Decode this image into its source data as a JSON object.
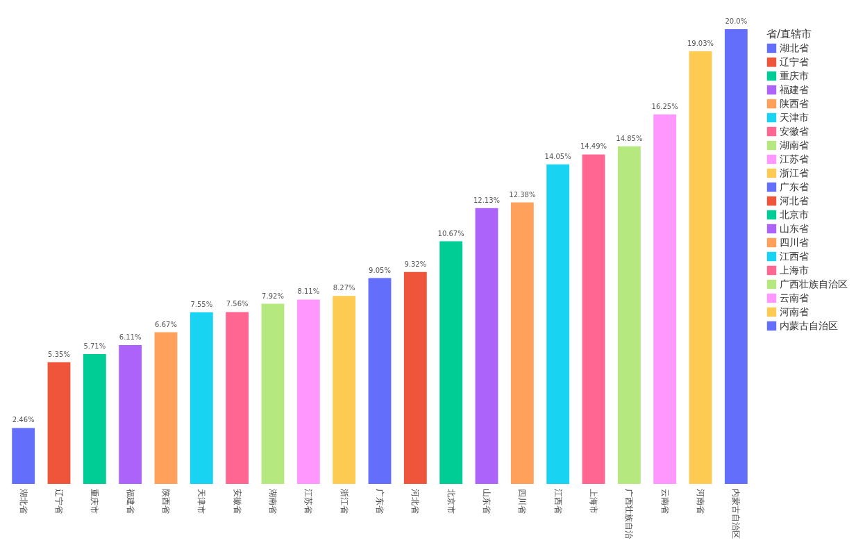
{
  "chart_data": {
    "type": "bar",
    "legend_title": "省/直辖市",
    "legend": "top right",
    "categories": [
      "湖北省",
      "辽宁省",
      "重庆市",
      "福建省",
      "陕西省",
      "天津市",
      "安徽省",
      "湖南省",
      "江苏省",
      "浙江省",
      "广东省",
      "河北省",
      "北京市",
      "山东省",
      "四川省",
      "江西省",
      "上海市",
      "广西壮族自治",
      "云南省",
      "河南省",
      "内蒙古自治区"
    ],
    "series": [
      {
        "name": "湖北省",
        "color": "#636efa",
        "values": [
          2.46,
          null,
          null,
          null,
          null,
          null,
          null,
          null,
          null,
          null,
          null,
          null,
          null,
          null,
          null,
          null,
          null,
          null,
          null,
          null,
          null
        ],
        "value_labels": [
          "2.46%",
          null,
          null,
          null,
          null,
          null,
          null,
          null,
          null,
          null,
          null,
          null,
          null,
          null,
          null,
          null,
          null,
          null,
          null,
          null,
          null
        ]
      },
      {
        "name": "辽宁省",
        "color": "#ef553b",
        "values": [
          null,
          5.35,
          null,
          null,
          null,
          null,
          null,
          null,
          null,
          null,
          null,
          null,
          null,
          null,
          null,
          null,
          null,
          null,
          null,
          null,
          null
        ],
        "value_labels": [
          null,
          "5.35%",
          null,
          null,
          null,
          null,
          null,
          null,
          null,
          null,
          null,
          null,
          null,
          null,
          null,
          null,
          null,
          null,
          null,
          null,
          null
        ]
      },
      {
        "name": "重庆市",
        "color": "#00cc96",
        "values": [
          null,
          null,
          5.71,
          null,
          null,
          null,
          null,
          null,
          null,
          null,
          null,
          null,
          null,
          null,
          null,
          null,
          null,
          null,
          null,
          null,
          null
        ],
        "value_labels": [
          null,
          null,
          "5.71%",
          null,
          null,
          null,
          null,
          null,
          null,
          null,
          null,
          null,
          null,
          null,
          null,
          null,
          null,
          null,
          null,
          null,
          null
        ]
      },
      {
        "name": "福建省",
        "color": "#ab63fa",
        "values": [
          null,
          null,
          null,
          6.11,
          null,
          null,
          null,
          null,
          null,
          null,
          null,
          null,
          null,
          null,
          null,
          null,
          null,
          null,
          null,
          null,
          null
        ],
        "value_labels": [
          null,
          null,
          null,
          "6.11%",
          null,
          null,
          null,
          null,
          null,
          null,
          null,
          null,
          null,
          null,
          null,
          null,
          null,
          null,
          null,
          null,
          null
        ]
      },
      {
        "name": "陕西省",
        "color": "#ffa15a",
        "values": [
          null,
          null,
          null,
          null,
          6.67,
          null,
          null,
          null,
          null,
          null,
          null,
          null,
          null,
          null,
          null,
          null,
          null,
          null,
          null,
          null,
          null
        ],
        "value_labels": [
          null,
          null,
          null,
          null,
          "6.67%",
          null,
          null,
          null,
          null,
          null,
          null,
          null,
          null,
          null,
          null,
          null,
          null,
          null,
          null,
          null,
          null
        ]
      },
      {
        "name": "天津市",
        "color": "#19d3f3",
        "values": [
          null,
          null,
          null,
          null,
          null,
          7.55,
          null,
          null,
          null,
          null,
          null,
          null,
          null,
          null,
          null,
          null,
          null,
          null,
          null,
          null,
          null
        ],
        "value_labels": [
          null,
          null,
          null,
          null,
          null,
          "7.55%",
          null,
          null,
          null,
          null,
          null,
          null,
          null,
          null,
          null,
          null,
          null,
          null,
          null,
          null,
          null
        ]
      },
      {
        "name": "安徽省",
        "color": "#ff6692",
        "values": [
          null,
          null,
          null,
          null,
          null,
          null,
          7.56,
          null,
          null,
          null,
          null,
          null,
          null,
          null,
          null,
          null,
          null,
          null,
          null,
          null,
          null
        ],
        "value_labels": [
          null,
          null,
          null,
          null,
          null,
          null,
          "7.56%",
          null,
          null,
          null,
          null,
          null,
          null,
          null,
          null,
          null,
          null,
          null,
          null,
          null,
          null
        ]
      },
      {
        "name": "湖南省",
        "color": "#b6e880",
        "values": [
          null,
          null,
          null,
          null,
          null,
          null,
          null,
          7.92,
          null,
          null,
          null,
          null,
          null,
          null,
          null,
          null,
          null,
          null,
          null,
          null,
          null
        ],
        "value_labels": [
          null,
          null,
          null,
          null,
          null,
          null,
          null,
          "7.92%",
          null,
          null,
          null,
          null,
          null,
          null,
          null,
          null,
          null,
          null,
          null,
          null,
          null
        ]
      },
      {
        "name": "江苏省",
        "color": "#ff97ff",
        "values": [
          null,
          null,
          null,
          null,
          null,
          null,
          null,
          null,
          8.11,
          null,
          null,
          null,
          null,
          null,
          null,
          null,
          null,
          null,
          null,
          null,
          null
        ],
        "value_labels": [
          null,
          null,
          null,
          null,
          null,
          null,
          null,
          null,
          "8.11%",
          null,
          null,
          null,
          null,
          null,
          null,
          null,
          null,
          null,
          null,
          null,
          null
        ]
      },
      {
        "name": "浙江省",
        "color": "#fecb52",
        "values": [
          null,
          null,
          null,
          null,
          null,
          null,
          null,
          null,
          null,
          8.27,
          null,
          null,
          null,
          null,
          null,
          null,
          null,
          null,
          null,
          null,
          null
        ],
        "value_labels": [
          null,
          null,
          null,
          null,
          null,
          null,
          null,
          null,
          null,
          "8.27%",
          null,
          null,
          null,
          null,
          null,
          null,
          null,
          null,
          null,
          null,
          null
        ]
      },
      {
        "name": "广东省",
        "color": "#636efa",
        "values": [
          null,
          null,
          null,
          null,
          null,
          null,
          null,
          null,
          null,
          null,
          9.05,
          null,
          null,
          null,
          null,
          null,
          null,
          null,
          null,
          null,
          null
        ],
        "value_labels": [
          null,
          null,
          null,
          null,
          null,
          null,
          null,
          null,
          null,
          null,
          "9.05%",
          null,
          null,
          null,
          null,
          null,
          null,
          null,
          null,
          null,
          null
        ]
      },
      {
        "name": "河北省",
        "color": "#ef553b",
        "values": [
          null,
          null,
          null,
          null,
          null,
          null,
          null,
          null,
          null,
          null,
          null,
          9.32,
          null,
          null,
          null,
          null,
          null,
          null,
          null,
          null,
          null
        ],
        "value_labels": [
          null,
          null,
          null,
          null,
          null,
          null,
          null,
          null,
          null,
          null,
          null,
          "9.32%",
          null,
          null,
          null,
          null,
          null,
          null,
          null,
          null,
          null
        ]
      },
      {
        "name": "北京市",
        "color": "#00cc96",
        "values": [
          null,
          null,
          null,
          null,
          null,
          null,
          null,
          null,
          null,
          null,
          null,
          null,
          10.67,
          null,
          null,
          null,
          null,
          null,
          null,
          null,
          null
        ],
        "value_labels": [
          null,
          null,
          null,
          null,
          null,
          null,
          null,
          null,
          null,
          null,
          null,
          null,
          "10.67%",
          null,
          null,
          null,
          null,
          null,
          null,
          null,
          null
        ]
      },
      {
        "name": "山东省",
        "color": "#ab63fa",
        "values": [
          null,
          null,
          null,
          null,
          null,
          null,
          null,
          null,
          null,
          null,
          null,
          null,
          null,
          12.13,
          null,
          null,
          null,
          null,
          null,
          null,
          null
        ],
        "value_labels": [
          null,
          null,
          null,
          null,
          null,
          null,
          null,
          null,
          null,
          null,
          null,
          null,
          null,
          "12.13%",
          null,
          null,
          null,
          null,
          null,
          null,
          null
        ]
      },
      {
        "name": "四川省",
        "color": "#ffa15a",
        "values": [
          null,
          null,
          null,
          null,
          null,
          null,
          null,
          null,
          null,
          null,
          null,
          null,
          null,
          null,
          12.38,
          null,
          null,
          null,
          null,
          null,
          null
        ],
        "value_labels": [
          null,
          null,
          null,
          null,
          null,
          null,
          null,
          null,
          null,
          null,
          null,
          null,
          null,
          null,
          "12.38%",
          null,
          null,
          null,
          null,
          null,
          null
        ]
      },
      {
        "name": "江西省",
        "color": "#19d3f3",
        "values": [
          null,
          null,
          null,
          null,
          null,
          null,
          null,
          null,
          null,
          null,
          null,
          null,
          null,
          null,
          null,
          14.05,
          null,
          null,
          null,
          null,
          null
        ],
        "value_labels": [
          null,
          null,
          null,
          null,
          null,
          null,
          null,
          null,
          null,
          null,
          null,
          null,
          null,
          null,
          null,
          "14.05%",
          null,
          null,
          null,
          null,
          null
        ]
      },
      {
        "name": "上海市",
        "color": "#ff6692",
        "values": [
          null,
          null,
          null,
          null,
          null,
          null,
          null,
          null,
          null,
          null,
          null,
          null,
          null,
          null,
          null,
          null,
          14.49,
          null,
          null,
          null,
          null
        ],
        "value_labels": [
          null,
          null,
          null,
          null,
          null,
          null,
          null,
          null,
          null,
          null,
          null,
          null,
          null,
          null,
          null,
          null,
          "14.49%",
          null,
          null,
          null,
          null
        ]
      },
      {
        "name": "广西壮族自治区",
        "color": "#b6e880",
        "values": [
          null,
          null,
          null,
          null,
          null,
          null,
          null,
          null,
          null,
          null,
          null,
          null,
          null,
          null,
          null,
          null,
          null,
          14.85,
          null,
          null,
          null
        ],
        "value_labels": [
          null,
          null,
          null,
          null,
          null,
          null,
          null,
          null,
          null,
          null,
          null,
          null,
          null,
          null,
          null,
          null,
          null,
          "14.85%",
          null,
          null,
          null
        ]
      },
      {
        "name": "云南省",
        "color": "#ff97ff",
        "values": [
          null,
          null,
          null,
          null,
          null,
          null,
          null,
          null,
          null,
          null,
          null,
          null,
          null,
          null,
          null,
          null,
          null,
          null,
          16.25,
          null,
          null
        ],
        "value_labels": [
          null,
          null,
          null,
          null,
          null,
          null,
          null,
          null,
          null,
          null,
          null,
          null,
          null,
          null,
          null,
          null,
          null,
          null,
          "16.25%",
          null,
          null
        ]
      },
      {
        "name": "河南省",
        "color": "#fecb52",
        "values": [
          null,
          null,
          null,
          null,
          null,
          null,
          null,
          null,
          null,
          null,
          null,
          null,
          null,
          null,
          null,
          null,
          null,
          null,
          null,
          19.03,
          null
        ],
        "value_labels": [
          null,
          null,
          null,
          null,
          null,
          null,
          null,
          null,
          null,
          null,
          null,
          null,
          null,
          null,
          null,
          null,
          null,
          null,
          null,
          "19.03%",
          null
        ]
      },
      {
        "name": "内蒙古自治区",
        "color": "#636efa",
        "values": [
          null,
          null,
          null,
          null,
          null,
          null,
          null,
          null,
          null,
          null,
          null,
          null,
          null,
          null,
          null,
          null,
          null,
          null,
          null,
          null,
          20.0
        ],
        "value_labels": [
          null,
          null,
          null,
          null,
          null,
          null,
          null,
          null,
          null,
          null,
          null,
          null,
          null,
          null,
          null,
          null,
          null,
          null,
          null,
          null,
          "20.0%"
        ]
      }
    ]
  }
}
